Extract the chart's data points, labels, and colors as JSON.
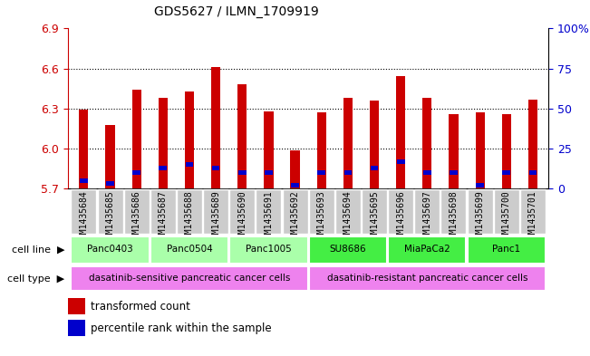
{
  "title": "GDS5627 / ILMN_1709919",
  "samples": [
    "GSM1435684",
    "GSM1435685",
    "GSM1435686",
    "GSM1435687",
    "GSM1435688",
    "GSM1435689",
    "GSM1435690",
    "GSM1435691",
    "GSM1435692",
    "GSM1435693",
    "GSM1435694",
    "GSM1435695",
    "GSM1435696",
    "GSM1435697",
    "GSM1435698",
    "GSM1435699",
    "GSM1435700",
    "GSM1435701"
  ],
  "red_values": [
    6.29,
    6.18,
    6.44,
    6.38,
    6.43,
    6.61,
    6.48,
    6.28,
    5.99,
    6.27,
    6.38,
    6.36,
    6.54,
    6.38,
    6.26,
    6.27,
    6.26,
    6.37
  ],
  "blue_percentiles": [
    5,
    3,
    10,
    13,
    15,
    13,
    10,
    10,
    2,
    10,
    10,
    13,
    17,
    10,
    10,
    2,
    10,
    10
  ],
  "ymin": 5.7,
  "ymax": 6.9,
  "yticks": [
    5.7,
    6.0,
    6.3,
    6.6,
    6.9
  ],
  "right_yticks": [
    0,
    25,
    50,
    75,
    100
  ],
  "right_yticklabels": [
    "0",
    "25",
    "50",
    "75",
    "100%"
  ],
  "cell_lines": [
    {
      "label": "Panc0403",
      "start": 0,
      "end": 2,
      "color": "#AAFFAA"
    },
    {
      "label": "Panc0504",
      "start": 3,
      "end": 5,
      "color": "#AAFFAA"
    },
    {
      "label": "Panc1005",
      "start": 6,
      "end": 8,
      "color": "#AAFFAA"
    },
    {
      "label": "SU8686",
      "start": 9,
      "end": 11,
      "color": "#44EE44"
    },
    {
      "label": "MiaPaCa2",
      "start": 12,
      "end": 14,
      "color": "#44EE44"
    },
    {
      "label": "Panc1",
      "start": 15,
      "end": 17,
      "color": "#44EE44"
    }
  ],
  "cell_type_sensitive": {
    "label": "dasatinib-sensitive pancreatic cancer cells",
    "start": 0,
    "end": 8
  },
  "cell_type_resistant": {
    "label": "dasatinib-resistant pancreatic cancer cells",
    "start": 9,
    "end": 17
  },
  "cell_type_color": "#EE82EE",
  "sample_bg_color": "#CCCCCC",
  "bar_width": 0.35,
  "red_color": "#CC0000",
  "blue_color": "#0000CC",
  "font_color_left": "#CC0000",
  "font_color_right": "#0000CC",
  "title_fontsize": 10,
  "tick_fontsize": 7,
  "label_fontsize": 7.5,
  "annotation_fontsize": 8
}
